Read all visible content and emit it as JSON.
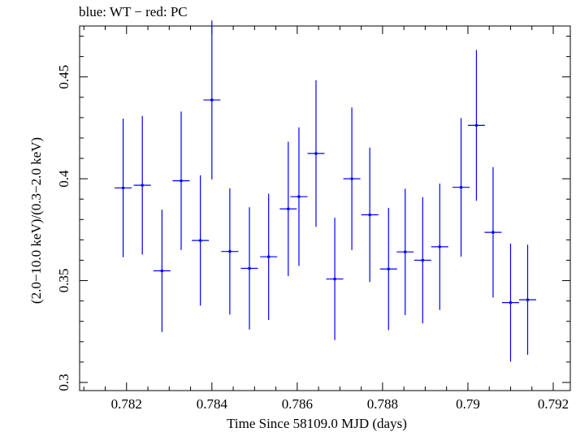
{
  "chart_data": {
    "type": "scatter",
    "title": "blue: WT − red: PC",
    "xlabel": "Time Since 58109.0 MJD (days)",
    "ylabel": "(2.0−10.0 keV)/(0.3−2.0 keV)",
    "xlim": [
      0.7809,
      0.7924
    ],
    "ylim": [
      0.296,
      0.475
    ],
    "xticks": [
      "0.782",
      "0.784",
      "0.786",
      "0.788",
      "0.79",
      "0.792"
    ],
    "yticks": [
      "0.3",
      "0.35",
      "0.4",
      "0.45"
    ],
    "series": [
      {
        "name": "WT",
        "color": "#0000ff",
        "points": [
          {
            "x": 0.78192,
            "y": 0.3955,
            "xerr": 0.0002,
            "yerr": 0.034
          },
          {
            "x": 0.78237,
            "y": 0.3968,
            "xerr": 0.0002,
            "yerr": 0.034
          },
          {
            "x": 0.78283,
            "y": 0.3548,
            "xerr": 0.0002,
            "yerr": 0.03
          },
          {
            "x": 0.78328,
            "y": 0.399,
            "xerr": 0.0002,
            "yerr": 0.034
          },
          {
            "x": 0.78373,
            "y": 0.3697,
            "xerr": 0.0002,
            "yerr": 0.032
          },
          {
            "x": 0.784,
            "y": 0.4387,
            "xerr": 0.0002,
            "yerr": 0.039
          },
          {
            "x": 0.78442,
            "y": 0.3643,
            "xerr": 0.0002,
            "yerr": 0.031
          },
          {
            "x": 0.78488,
            "y": 0.356,
            "xerr": 0.0002,
            "yerr": 0.03
          },
          {
            "x": 0.78533,
            "y": 0.3617,
            "xerr": 0.0002,
            "yerr": 0.031
          },
          {
            "x": 0.78579,
            "y": 0.3852,
            "xerr": 0.0002,
            "yerr": 0.033
          },
          {
            "x": 0.78604,
            "y": 0.3912,
            "xerr": 0.0002,
            "yerr": 0.034
          },
          {
            "x": 0.78644,
            "y": 0.4124,
            "xerr": 0.0002,
            "yerr": 0.036
          },
          {
            "x": 0.78688,
            "y": 0.3508,
            "xerr": 0.0002,
            "yerr": 0.03
          },
          {
            "x": 0.78728,
            "y": 0.4,
            "xerr": 0.0002,
            "yerr": 0.035
          },
          {
            "x": 0.7877,
            "y": 0.3823,
            "xerr": 0.0002,
            "yerr": 0.033
          },
          {
            "x": 0.78814,
            "y": 0.3557,
            "xerr": 0.0002,
            "yerr": 0.03
          },
          {
            "x": 0.78853,
            "y": 0.3641,
            "xerr": 0.0002,
            "yerr": 0.031
          },
          {
            "x": 0.78894,
            "y": 0.36,
            "xerr": 0.0002,
            "yerr": 0.031
          },
          {
            "x": 0.78934,
            "y": 0.3666,
            "xerr": 0.0002,
            "yerr": 0.031
          },
          {
            "x": 0.78984,
            "y": 0.3958,
            "xerr": 0.0002,
            "yerr": 0.034
          },
          {
            "x": 0.7902,
            "y": 0.4262,
            "xerr": 0.0002,
            "yerr": 0.037
          },
          {
            "x": 0.79059,
            "y": 0.3737,
            "xerr": 0.0002,
            "yerr": 0.032
          },
          {
            "x": 0.791,
            "y": 0.3392,
            "xerr": 0.0002,
            "yerr": 0.029
          },
          {
            "x": 0.7914,
            "y": 0.3406,
            "xerr": 0.0002,
            "yerr": 0.027
          }
        ]
      }
    ]
  }
}
